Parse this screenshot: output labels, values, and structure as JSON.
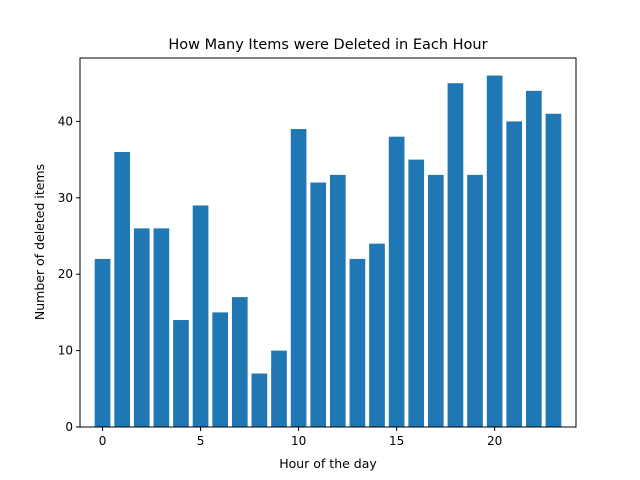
{
  "chart_data": {
    "type": "bar",
    "title": "How Many Items were Deleted in Each Hour",
    "xlabel": "Hour of the day",
    "ylabel": "Number of deleted items",
    "x": [
      0,
      1,
      2,
      3,
      4,
      5,
      6,
      7,
      8,
      9,
      10,
      11,
      12,
      13,
      14,
      15,
      16,
      17,
      18,
      19,
      20,
      21,
      22,
      23
    ],
    "values": [
      22,
      36,
      26,
      26,
      14,
      29,
      15,
      17,
      7,
      10,
      39,
      32,
      33,
      22,
      24,
      38,
      35,
      33,
      45,
      33,
      46,
      40,
      44,
      41
    ],
    "xlim": [
      -1.15,
      24.15
    ],
    "ylim": [
      0,
      48.3
    ],
    "xticks": [
      0,
      5,
      10,
      15,
      20
    ],
    "yticks": [
      0,
      10,
      20,
      30,
      40
    ],
    "bar_color": "#1f77b4",
    "grid": false,
    "legend": "none"
  }
}
